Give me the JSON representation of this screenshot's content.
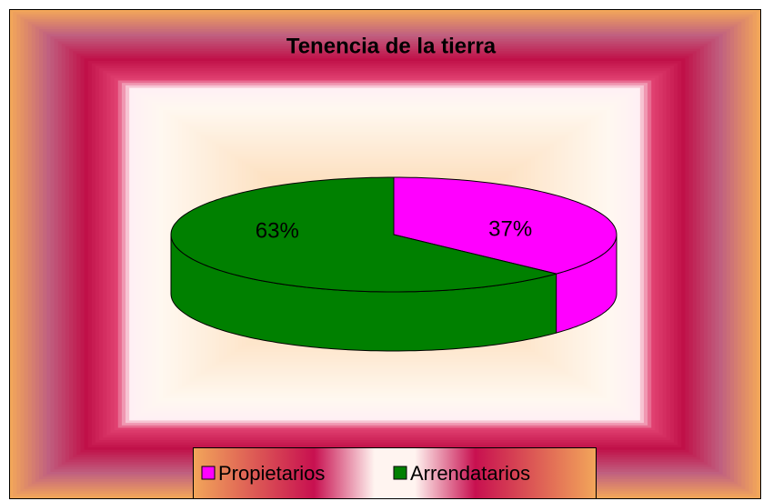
{
  "chart_data": {
    "type": "pie",
    "title": "Tenencia de la tierra",
    "categories": [
      "Propietarios",
      "Arrendatarios"
    ],
    "values": [
      37,
      63
    ],
    "value_labels": [
      "37%",
      "63%"
    ],
    "colors": [
      "#ff00ff",
      "#008000"
    ],
    "legend": "bottom"
  }
}
